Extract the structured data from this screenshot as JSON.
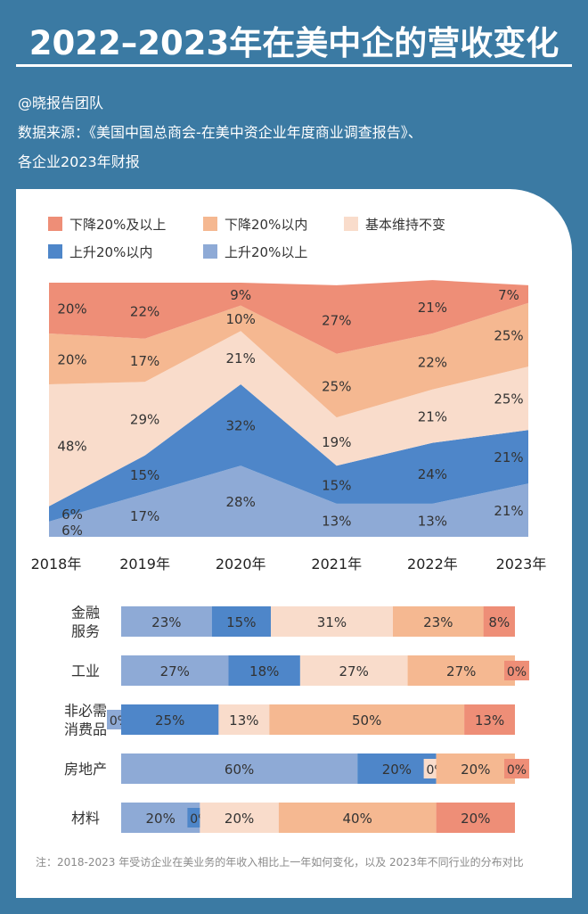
{
  "header": {
    "title": "2022–2023年在美中企的营收变化",
    "author": "@晓报告团队",
    "source_line1": "数据来源：《美国中国总商会-在美中资企业年度商业调查报告》、",
    "source_line2": "各企业2023年财报"
  },
  "legend": [
    {
      "label": "下降20%及以上",
      "color": "#ee8e77"
    },
    {
      "label": "下降20%以内",
      "color": "#f5b891"
    },
    {
      "label": "基本维持不变",
      "color": "#f9dccb"
    },
    {
      "label": "上升20%以内",
      "color": "#4e86c9"
    },
    {
      "label": "上升20%以上",
      "color": "#8eaad6"
    }
  ],
  "chart_data": [
    {
      "type": "area",
      "stacked": true,
      "normalized": true,
      "title": "",
      "x": [
        "2018年",
        "2019年",
        "2020年",
        "2021年",
        "2022年",
        "2023年"
      ],
      "ylim": [
        0,
        100
      ],
      "series": [
        {
          "name": "上升20%以上",
          "color": "#8eaad6",
          "values": [
            6,
            17,
            28,
            13,
            13,
            21
          ]
        },
        {
          "name": "上升20%以内",
          "color": "#4e86c9",
          "values": [
            6,
            15,
            32,
            15,
            24,
            21
          ]
        },
        {
          "name": "基本维持不变",
          "color": "#f9dccb",
          "values": [
            48,
            29,
            21,
            19,
            21,
            25
          ]
        },
        {
          "name": "下降20%以内",
          "color": "#f5b891",
          "values": [
            20,
            17,
            10,
            25,
            22,
            25
          ]
        },
        {
          "name": "下降20%及以上",
          "color": "#ee8e77",
          "values": [
            20,
            22,
            9,
            27,
            21,
            7
          ]
        }
      ],
      "value_suffix": "%"
    },
    {
      "type": "bar",
      "orientation": "horizontal",
      "stacked": true,
      "categories": [
        "金融服务",
        "工业",
        "非必需消费品",
        "房地产",
        "材料"
      ],
      "category_lines": [
        [
          "金融",
          "服务"
        ],
        [
          "工业"
        ],
        [
          "非必需",
          "消费品"
        ],
        [
          "房地产"
        ],
        [
          "材料"
        ]
      ],
      "series": [
        {
          "name": "上升20%以上",
          "color": "#8eaad6",
          "values": [
            23,
            27,
            0,
            60,
            20
          ]
        },
        {
          "name": "上升20%以内",
          "color": "#4e86c9",
          "values": [
            15,
            18,
            25,
            20,
            0
          ]
        },
        {
          "name": "基本维持不变",
          "color": "#f9dccb",
          "values": [
            31,
            27,
            13,
            0,
            20
          ]
        },
        {
          "name": "下降20%以内",
          "color": "#f5b891",
          "values": [
            23,
            27,
            50,
            20,
            40
          ]
        },
        {
          "name": "下降20%及以上",
          "color": "#ee8e77",
          "values": [
            8,
            0,
            13,
            0,
            20
          ]
        }
      ],
      "value_suffix": "%"
    }
  ],
  "note": "注：2018-2023 年受访企业在美业务的年收入相比上一年如何变化，以及 2023年不同行业的分布对比"
}
